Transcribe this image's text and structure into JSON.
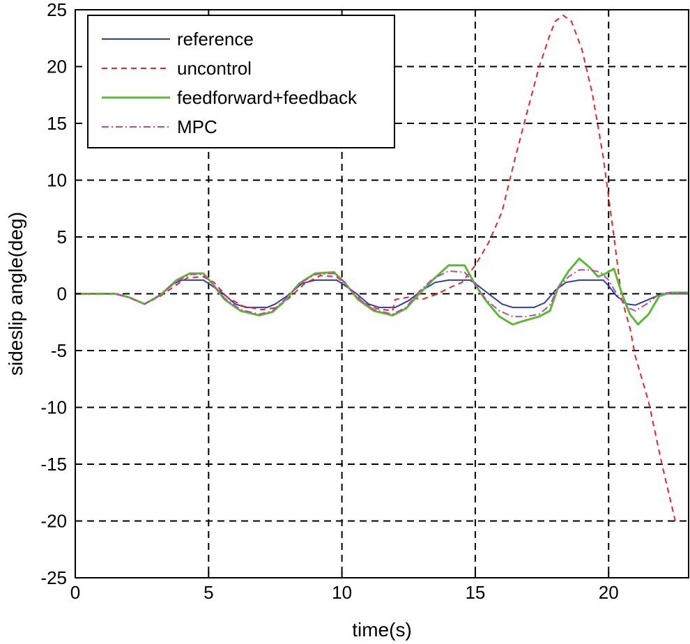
{
  "chart_data": {
    "type": "line",
    "title": "",
    "xlabel": "time(s)",
    "ylabel": "sideslip angle(deg)",
    "xlim": [
      0,
      23
    ],
    "ylim": [
      -25,
      25
    ],
    "grid": true,
    "legend_position": "top-left",
    "x_ticks": [
      0,
      5,
      10,
      15,
      20
    ],
    "x_tick_labels": [
      "0",
      "5",
      "10",
      "15",
      "20"
    ],
    "y_ticks": [
      25,
      20,
      15,
      10,
      5,
      0,
      -5,
      -10,
      -15,
      -20,
      -25
    ],
    "y_tick_labels": [
      "25",
      "20",
      "15",
      "10",
      "5",
      "0",
      "-5",
      "-10",
      "-15",
      "-20",
      "-25"
    ],
    "series": [
      {
        "name": "reference",
        "color": "#2d3fa3",
        "style": "solid",
        "x": [
          0,
          1.5,
          2,
          2.6,
          3.2,
          3.7,
          4.0,
          4.8,
          5.0,
          5.5,
          6.0,
          6.4,
          7.2,
          7.5,
          8.0,
          8.5,
          9.0,
          9.8,
          10.0,
          10.5,
          11.0,
          11.4,
          12.0,
          12.5,
          13.0,
          13.5,
          14.0,
          14.8,
          15.0,
          15.5,
          16.0,
          16.4,
          17.2,
          17.6,
          18.0,
          18.4,
          18.9,
          19.8,
          20.0,
          20.3,
          20.7,
          21.0,
          21.5,
          22.0,
          23.0
        ],
        "y": [
          0,
          0,
          -0.3,
          -0.9,
          -0.1,
          0.9,
          1.2,
          1.2,
          0.9,
          0.1,
          -0.9,
          -1.2,
          -1.2,
          -0.9,
          -0.1,
          0.9,
          1.2,
          1.2,
          0.9,
          0.1,
          -0.9,
          -1.2,
          -1.2,
          -0.6,
          0.3,
          1.0,
          1.2,
          1.2,
          0.9,
          0.0,
          -0.9,
          -1.2,
          -1.2,
          -0.8,
          0.3,
          1.0,
          1.2,
          1.2,
          0.7,
          -0.2,
          -0.9,
          -1.0,
          -0.5,
          0.0,
          0.0
        ]
      },
      {
        "name": "uncontrol",
        "color": "#e8242a",
        "style": "dashed",
        "x": [
          0,
          1.5,
          2,
          2.6,
          3.2,
          3.8,
          4.2,
          4.8,
          5.2,
          5.7,
          6.3,
          7.0,
          7.6,
          8.1,
          8.6,
          9.2,
          9.8,
          10.3,
          10.8,
          11.3,
          11.9,
          12.0,
          12.5,
          13.0,
          13.6,
          14.0,
          14.5,
          15.0,
          15.5,
          16.0,
          16.5,
          17.0,
          17.4,
          17.8,
          18.0,
          18.3,
          18.6,
          19.0,
          19.4,
          19.8,
          20.2,
          20.5,
          20.8,
          21.0,
          21.5,
          22.0,
          22.5
        ],
        "y": [
          0,
          0,
          -0.3,
          -0.9,
          -0.2,
          0.8,
          1.4,
          1.5,
          1.0,
          -0.3,
          -1.1,
          -1.4,
          -1.2,
          -0.2,
          0.9,
          1.6,
          1.5,
          0.5,
          -0.8,
          -1.3,
          -1.5,
          -0.5,
          -0.3,
          -0.5,
          0.0,
          0.5,
          1.0,
          2.5,
          4.5,
          7.2,
          12.0,
          16.5,
          20.0,
          22.8,
          24.0,
          24.5,
          24.0,
          21.5,
          17.5,
          12.0,
          5.0,
          -0.5,
          -3.0,
          -5.5,
          -9.5,
          -15.0,
          -20.0
        ]
      },
      {
        "name": "feedforward+feedback",
        "color": "#5cb935",
        "style": "solid",
        "x": [
          0,
          1.5,
          2,
          2.6,
          3.2,
          3.8,
          4.3,
          4.8,
          5.1,
          5.6,
          6.2,
          6.9,
          7.4,
          7.9,
          8.4,
          9.0,
          9.7,
          10.1,
          10.6,
          11.2,
          11.9,
          12.4,
          12.9,
          13.4,
          14.0,
          14.6,
          15.0,
          15.4,
          15.9,
          16.4,
          16.8,
          17.4,
          17.8,
          18.1,
          18.5,
          18.9,
          19.3,
          19.6,
          19.9,
          20.2,
          20.5,
          20.8,
          21.1,
          21.5,
          21.9,
          22.3,
          23.0
        ],
        "y": [
          0,
          0,
          -0.3,
          -0.9,
          -0.1,
          1.2,
          1.8,
          1.8,
          1.0,
          -0.5,
          -1.5,
          -1.9,
          -1.6,
          -0.5,
          0.9,
          1.8,
          1.9,
          1.0,
          -0.5,
          -1.5,
          -1.9,
          -1.3,
          0.0,
          1.2,
          2.5,
          2.5,
          0.8,
          -0.6,
          -2.0,
          -2.7,
          -2.4,
          -2.0,
          -1.5,
          0.5,
          2.0,
          3.1,
          2.3,
          1.5,
          1.8,
          2.2,
          0.0,
          -1.8,
          -2.7,
          -1.8,
          -0.2,
          0.1,
          0.1
        ]
      },
      {
        "name": "MPC",
        "color": "#b84ba3",
        "style": "dashdot",
        "x": [
          0,
          1.5,
          2,
          2.6,
          3.2,
          3.8,
          4.3,
          4.8,
          5.1,
          5.6,
          6.2,
          6.9,
          7.4,
          7.9,
          8.4,
          9.0,
          9.7,
          10.1,
          10.6,
          11.2,
          11.9,
          12.4,
          12.9,
          13.4,
          14.0,
          14.6,
          15.0,
          15.4,
          15.9,
          16.4,
          16.9,
          17.4,
          17.8,
          18.1,
          18.5,
          18.9,
          19.3,
          19.7,
          20.0,
          20.3,
          20.7,
          21.0,
          21.5,
          21.9,
          22.3,
          23.0
        ],
        "y": [
          0,
          0,
          -0.3,
          -0.9,
          -0.1,
          1.1,
          1.7,
          1.7,
          1.0,
          -0.4,
          -1.4,
          -1.8,
          -1.5,
          -0.4,
          0.9,
          1.7,
          1.8,
          1.0,
          -0.4,
          -1.4,
          -1.8,
          -1.2,
          0.2,
          1.3,
          2.0,
          1.9,
          0.8,
          -0.5,
          -1.5,
          -2.0,
          -2.0,
          -1.8,
          -1.0,
          0.5,
          1.5,
          2.1,
          2.1,
          1.9,
          1.2,
          0.0,
          -1.2,
          -1.5,
          -0.8,
          0.0,
          0.1,
          0.1
        ]
      }
    ]
  }
}
